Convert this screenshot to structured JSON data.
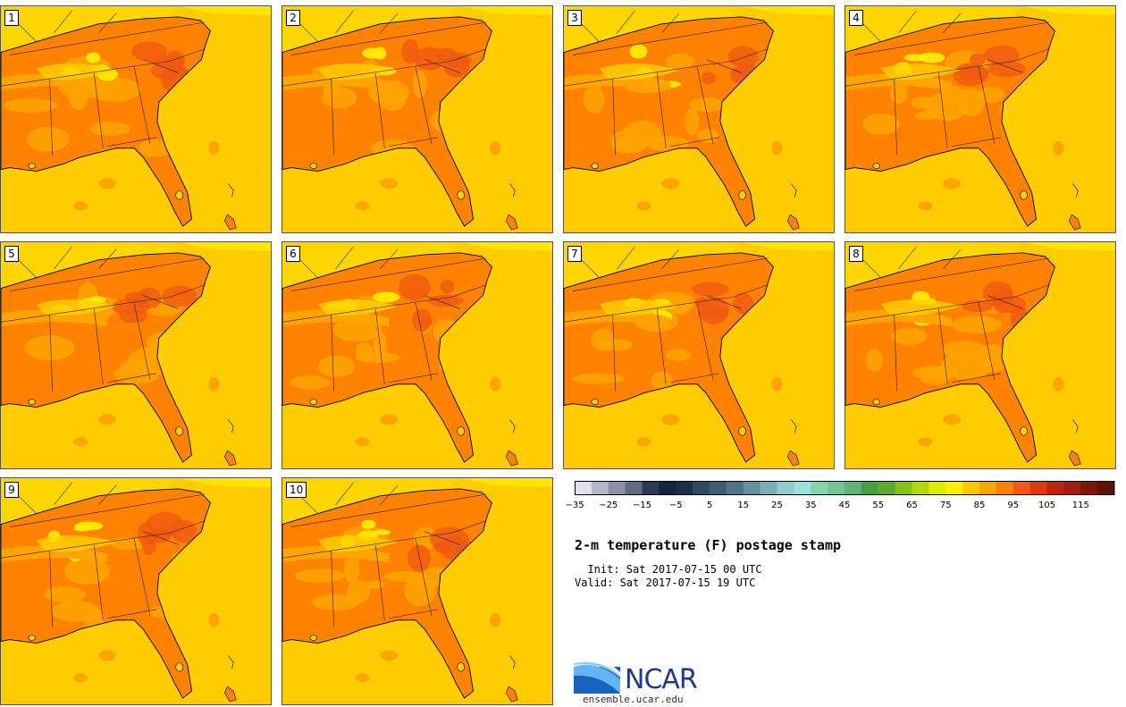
{
  "panels": [
    {
      "label": "1"
    },
    {
      "label": "2"
    },
    {
      "label": "3"
    },
    {
      "label": "4"
    },
    {
      "label": "5"
    },
    {
      "label": "6"
    },
    {
      "label": "7"
    },
    {
      "label": "8"
    },
    {
      "label": "9"
    },
    {
      "label": "10"
    }
  ],
  "colorbar": {
    "tick_labels": [
      "−35",
      "−25",
      "−15",
      "−5",
      "5",
      "15",
      "25",
      "35",
      "45",
      "55",
      "65",
      "75",
      "85",
      "95",
      "105",
      "115"
    ],
    "colors": [
      "#E0E3EC",
      "#B4B9CA",
      "#8A90A6",
      "#636B82",
      "#2E3A55",
      "#152340",
      "#1E2E4A",
      "#2E4A60",
      "#3E5E74",
      "#4E7486",
      "#62909E",
      "#7AAEB6",
      "#8ECFCC",
      "#98E4DA",
      "#86D3AE",
      "#74C492",
      "#60B276",
      "#46A040",
      "#5AAA2E",
      "#86C21A",
      "#B2D80A",
      "#D8EC00",
      "#FFF000",
      "#FFC800",
      "#FFA400",
      "#FF8200",
      "#F05A10",
      "#E03A0A",
      "#C02408",
      "#A01C0C",
      "#7E1608",
      "#5E1206"
    ]
  },
  "title": "2-m temperature (F) postage stamp",
  "init": "  Init: Sat 2017-07-15 00 UTC",
  "valid": "Valid: Sat 2017-07-15 19 UTC",
  "logo": {
    "name": "NCAR",
    "url": "ensemble.ucar.edu"
  }
}
